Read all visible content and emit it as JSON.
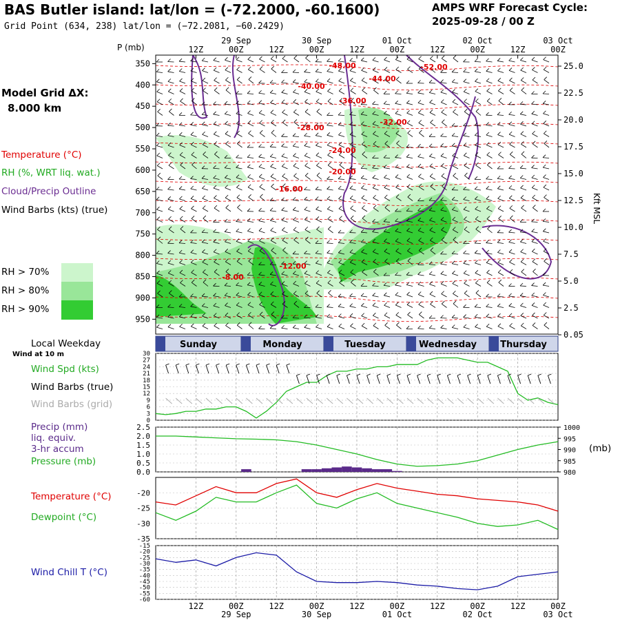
{
  "header": {
    "title": "BAS Butler island:  lat/lon = (-72.2000, -60.1600)",
    "subtitle": "Grid Point (634, 238) lat/lon = (−72.2081, −60.2429)",
    "cycle_title": "AMPS WRF Forecast Cycle:",
    "cycle_value": "2025-09-28 / 00  Z"
  },
  "left_panel": {
    "model_grid": "Model Grid ΔX:",
    "grid_value": "8.000 km",
    "legend_temperature": "Temperature (°C)",
    "legend_rh": "RH (%, WRT liq. wat.)",
    "legend_cloud": "Cloud/Precip Outline",
    "legend_wind": "Wind Barbs (kts) (true)",
    "rh70": "RH > 70%",
    "rh80": "RH > 80%",
    "rh90": "RH > 90%"
  },
  "time_axis": {
    "hour_labels": [
      "12Z",
      "00Z",
      "12Z",
      "00Z",
      "12Z",
      "00Z",
      "12Z",
      "00Z",
      "12Z",
      "00Z"
    ],
    "date_labels": [
      "29 Sep",
      "30 Sep",
      "01 Oct",
      "02 Oct",
      "03 Oct"
    ]
  },
  "weekdays": {
    "caption": "Local Weekday",
    "days": [
      "Sunday",
      "Monday",
      "Tuesday",
      "Wednesday",
      "Thursday"
    ]
  },
  "colors": {
    "temperature": "#e00000",
    "rh70": "#ccf5cc",
    "rh80": "#99e699",
    "rh90": "#33cc33",
    "cloud": "#6a2c91",
    "wind_speed": "#22bb22",
    "dewpoint": "#22bb22",
    "wind_chill": "#1a1aa6",
    "precip": "#5a2a8a",
    "grid_barbs": "#aaaaaa"
  },
  "chart_data": [
    {
      "type": "heatmap",
      "y_axis_label": "P (mb)",
      "pressure_ticks": [
        350,
        400,
        450,
        500,
        550,
        600,
        650,
        700,
        750,
        800,
        850,
        900,
        950
      ],
      "right_axis_label": "Kft MSL",
      "height_ticks": [
        "25.0",
        "22.5",
        "20.0",
        "17.5",
        "15.0",
        "12.5",
        "10.0",
        "7.5",
        "5.0",
        "2.5",
        "0.05"
      ],
      "temperature_contour_labels": [
        "-48.00",
        "-44.00",
        "-40.00",
        "-36.00",
        "-32.00",
        "-52.00",
        "-28.00",
        "-24.00",
        "-20.00",
        "-16.00",
        "-12.00",
        "-8.00"
      ]
    },
    {
      "type": "line",
      "label_speed": "Wind Spd (kts)",
      "label_barbs_true": "Wind Barbs (true)",
      "label_barbs_grid": "Wind Barbs (grid)",
      "caption": "Wind at 10 m",
      "y_ticks": [
        0,
        3,
        6,
        9,
        12,
        15,
        18,
        21,
        24,
        27,
        30
      ],
      "ylim": [
        0,
        30
      ],
      "x_hours": [
        0,
        3,
        6,
        9,
        12,
        15,
        18,
        21,
        24,
        27,
        30,
        33,
        36,
        39,
        42,
        45,
        48,
        51,
        54,
        57,
        60,
        63,
        66,
        69,
        72,
        75,
        78,
        81,
        84,
        87,
        90,
        93,
        96,
        99,
        102,
        105,
        108,
        111,
        114,
        117,
        120
      ],
      "values": [
        3,
        2.5,
        3,
        4,
        4,
        5,
        5,
        6,
        6,
        4,
        1,
        4,
        8,
        13,
        15,
        17,
        17,
        20,
        22,
        22,
        23,
        23,
        24,
        24,
        25,
        25,
        25,
        27,
        28,
        28,
        28,
        27,
        26,
        26,
        24,
        22,
        12,
        9,
        10,
        8,
        7
      ]
    },
    {
      "type": "line",
      "label_precip": "Precip (mm)",
      "label_precip2": "liq. equiv.",
      "label_precip3": "3-hr accum",
      "label_pressure": "Pressure (mb)",
      "precip_ticks": [
        "0.0",
        "0.5",
        "1.0",
        "1.5",
        "2.0",
        "2.5"
      ],
      "pressure_ticks": [
        980,
        985,
        990,
        995,
        1000
      ],
      "pressure_unit": "(mb)",
      "x_hours": [
        0,
        6,
        12,
        18,
        24,
        30,
        36,
        42,
        48,
        54,
        60,
        66,
        72,
        78,
        84,
        90,
        96,
        102,
        108,
        114,
        120
      ],
      "pressure": [
        996,
        996,
        995.6,
        995.2,
        994.8,
        994.6,
        994.3,
        993.5,
        992,
        990,
        988,
        985.5,
        983.5,
        982.5,
        982.8,
        983.5,
        985,
        987.5,
        990,
        992,
        993.5
      ],
      "precip_bars": [
        {
          "x": 27,
          "value": 0.15
        },
        {
          "x": 45,
          "value": 0.15
        },
        {
          "x": 48,
          "value": 0.15
        },
        {
          "x": 51,
          "value": 0.2
        },
        {
          "x": 54,
          "value": 0.25
        },
        {
          "x": 57,
          "value": 0.3
        },
        {
          "x": 60,
          "value": 0.25
        },
        {
          "x": 63,
          "value": 0.2
        },
        {
          "x": 66,
          "value": 0.15
        },
        {
          "x": 69,
          "value": 0.15
        },
        {
          "x": 72,
          "value": 0.05
        }
      ]
    },
    {
      "type": "line",
      "label_temperature": "Temperature (°C)",
      "label_dewpoint": "Dewpoint (°C)",
      "y_ticks": [
        -20,
        -25,
        -30,
        -35
      ],
      "ylim": [
        -35,
        -15
      ],
      "x_hours": [
        0,
        6,
        12,
        18,
        24,
        30,
        36,
        42,
        48,
        54,
        60,
        66,
        72,
        78,
        84,
        90,
        96,
        102,
        108,
        114,
        120
      ],
      "temperature": [
        -23,
        -24,
        -21,
        -18,
        -20,
        -20,
        -17,
        -15.5,
        -20,
        -21.5,
        -19,
        -17,
        -18.5,
        -19.5,
        -20.5,
        -21,
        -22,
        -22.5,
        -23,
        -24,
        -26
      ],
      "dewpoint": [
        -26.5,
        -29,
        -26,
        -21.5,
        -23,
        -23,
        -20,
        -17.5,
        -23.5,
        -25,
        -22,
        -20,
        -23.5,
        -25,
        -26.5,
        -28,
        -30,
        -31,
        -30.5,
        -29,
        -32
      ]
    },
    {
      "type": "line",
      "label": "Wind Chill T (°C)",
      "y_ticks": [
        -15,
        -20,
        -25,
        -30,
        -35,
        -40,
        -45,
        -50,
        -55,
        -60
      ],
      "ylim": [
        -60,
        -15
      ],
      "x_hours": [
        0,
        6,
        12,
        18,
        24,
        30,
        36,
        42,
        48,
        54,
        60,
        66,
        72,
        78,
        84,
        90,
        96,
        102,
        108,
        114,
        120
      ],
      "values": [
        -26,
        -29,
        -27,
        -32,
        -25,
        -21,
        -23,
        -37,
        -45,
        -46,
        -46,
        -45,
        -46,
        -48,
        -49,
        -51,
        -52,
        -49,
        -41,
        -39,
        -37
      ]
    }
  ]
}
